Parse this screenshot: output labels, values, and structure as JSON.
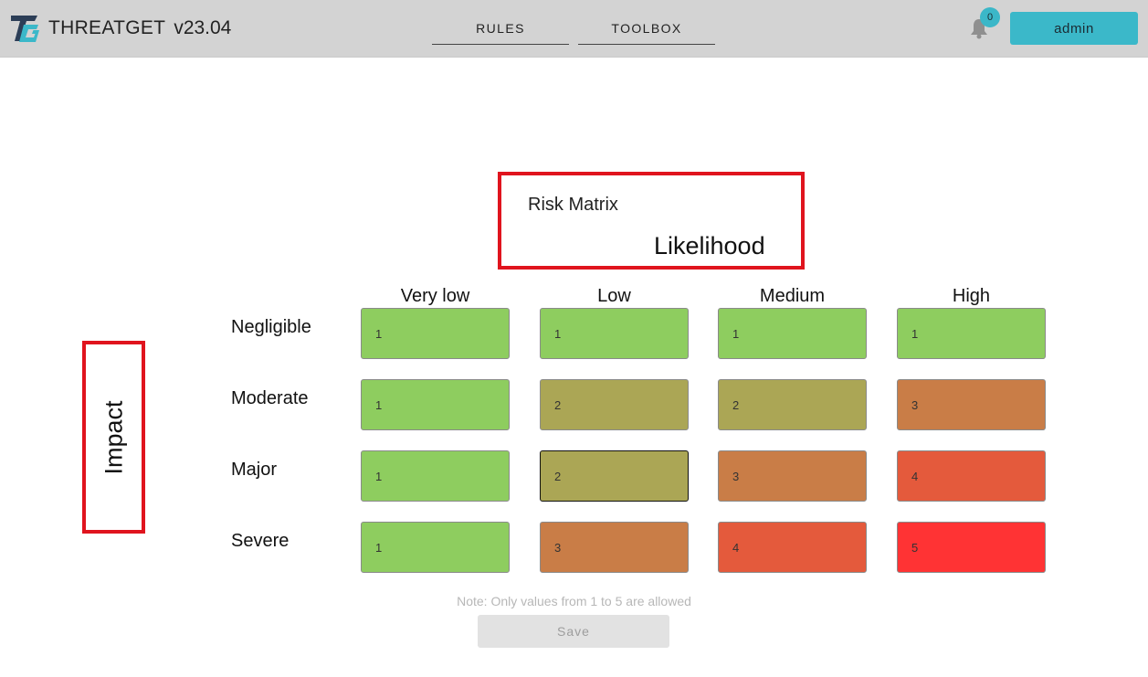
{
  "app": {
    "name": "THREATGET",
    "version": "v23.04"
  },
  "nav": {
    "tabs": [
      {
        "label": "RULES"
      },
      {
        "label": "TOOLBOX"
      }
    ]
  },
  "notifications": {
    "count": "0",
    "icon": "bell-icon"
  },
  "user": {
    "label": "admin"
  },
  "matrix": {
    "title": "Risk Matrix",
    "x_axis_label": "Likelihood",
    "y_axis_label": "Impact",
    "columns": [
      "Very low",
      "Low",
      "Medium",
      "High"
    ],
    "rows": [
      "Negligible",
      "Moderate",
      "Major",
      "Severe"
    ],
    "values": [
      [
        "1",
        "1",
        "1",
        "1"
      ],
      [
        "1",
        "2",
        "2",
        "3"
      ],
      [
        "1",
        "2",
        "3",
        "4"
      ],
      [
        "1",
        "3",
        "4",
        "5"
      ]
    ],
    "level_colors": {
      "1": "#8ecd5f",
      "2": "#aba655",
      "3": "#c97d47",
      "4": "#e45a3c",
      "5": "#ff3334"
    },
    "note": "Note: Only values from 1 to 5 are allowed"
  },
  "actions": {
    "save_label": "Save"
  },
  "colors": {
    "topbar": "#d3d3d3",
    "accent": "#3bb8c9",
    "highlight_border": "#e0141e"
  }
}
